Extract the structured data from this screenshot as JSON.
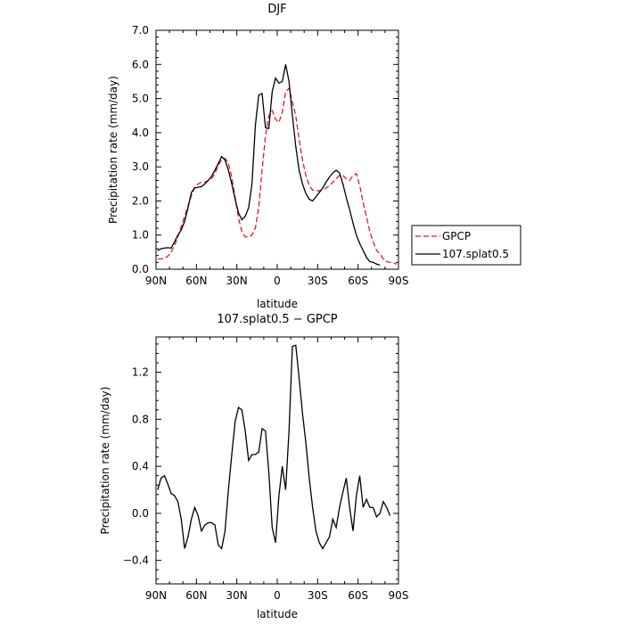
{
  "chart_data": [
    {
      "type": "line",
      "title": "DJF",
      "xlabel": "latitude",
      "ylabel": "Precipitation rate (mm/day)",
      "xlim": [
        90,
        -90
      ],
      "ylim": [
        0,
        7
      ],
      "x_ticks": [
        {
          "value": 90,
          "label": "90N"
        },
        {
          "value": 60,
          "label": "60N"
        },
        {
          "value": 30,
          "label": "30N"
        },
        {
          "value": 0,
          "label": "0"
        },
        {
          "value": -30,
          "label": "30S"
        },
        {
          "value": -60,
          "label": "60S"
        },
        {
          "value": -90,
          "label": "90S"
        }
      ],
      "y_ticks": [
        {
          "value": 0,
          "label": "0.0"
        },
        {
          "value": 1,
          "label": "1.0"
        },
        {
          "value": 2,
          "label": "2.0"
        },
        {
          "value": 3,
          "label": "3.0"
        },
        {
          "value": 4,
          "label": "4.0"
        },
        {
          "value": 5,
          "label": "5.0"
        },
        {
          "value": 6,
          "label": "6.0"
        },
        {
          "value": 7,
          "label": "7.0"
        }
      ],
      "legend_position": "right",
      "series": [
        {
          "name": "GPCP",
          "color": "#e8191c",
          "dash": "dashed",
          "points": [
            [
              88.75,
              0.3
            ],
            [
              86.25,
              0.3
            ],
            [
              83.75,
              0.32
            ],
            [
              81.25,
              0.38
            ],
            [
              78.75,
              0.5
            ],
            [
              76.25,
              0.7
            ],
            [
              73.75,
              0.95
            ],
            [
              71.25,
              1.25
            ],
            [
              68.75,
              1.55
            ],
            [
              66.25,
              1.85
            ],
            [
              63.75,
              2.15
            ],
            [
              61.25,
              2.4
            ],
            [
              58.75,
              2.5
            ],
            [
              56.25,
              2.55
            ],
            [
              53.75,
              2.55
            ],
            [
              51.25,
              2.6
            ],
            [
              48.75,
              2.65
            ],
            [
              46.25,
              2.8
            ],
            [
              43.75,
              3.05
            ],
            [
              41.25,
              3.2
            ],
            [
              38.75,
              3.25
            ],
            [
              36.25,
              3.1
            ],
            [
              33.75,
              2.7
            ],
            [
              31.25,
              2.1
            ],
            [
              28.75,
              1.5
            ],
            [
              26.25,
              1.1
            ],
            [
              23.75,
              0.95
            ],
            [
              21.25,
              0.95
            ],
            [
              18.75,
              1.0
            ],
            [
              16.25,
              1.2
            ],
            [
              13.75,
              1.8
            ],
            [
              11.25,
              2.9
            ],
            [
              8.75,
              3.9
            ],
            [
              6.25,
              4.5
            ],
            [
              3.75,
              4.65
            ],
            [
              1.25,
              4.4
            ],
            [
              -1.25,
              4.3
            ],
            [
              -3.75,
              4.6
            ],
            [
              -6.25,
              5.2
            ],
            [
              -8.75,
              5.3
            ],
            [
              -11.25,
              4.9
            ],
            [
              -13.75,
              4.5
            ],
            [
              -16.25,
              3.8
            ],
            [
              -18.75,
              3.2
            ],
            [
              -21.25,
              2.75
            ],
            [
              -23.75,
              2.45
            ],
            [
              -26.25,
              2.32
            ],
            [
              -28.75,
              2.3
            ],
            [
              -31.25,
              2.3
            ],
            [
              -33.75,
              2.32
            ],
            [
              -36.25,
              2.38
            ],
            [
              -38.75,
              2.45
            ],
            [
              -41.25,
              2.55
            ],
            [
              -43.75,
              2.65
            ],
            [
              -46.25,
              2.75
            ],
            [
              -48.75,
              2.75
            ],
            [
              -51.25,
              2.65
            ],
            [
              -53.75,
              2.6
            ],
            [
              -56.25,
              2.75
            ],
            [
              -58.75,
              2.8
            ],
            [
              -61.25,
              2.45
            ],
            [
              -63.75,
              1.95
            ],
            [
              -66.25,
              1.55
            ],
            [
              -68.75,
              1.1
            ],
            [
              -71.25,
              0.8
            ],
            [
              -73.75,
              0.55
            ],
            [
              -76.25,
              0.45
            ],
            [
              -78.75,
              0.3
            ],
            [
              -81.25,
              0.22
            ],
            [
              -83.75,
              0.2
            ],
            [
              -86.25,
              0.18
            ],
            [
              -88.75,
              0.15
            ]
          ]
        },
        {
          "name": "107.splat0.5",
          "color": "#000000",
          "dash": "solid",
          "points": [
            [
              88.75,
              0.55
            ],
            [
              86.25,
              0.6
            ],
            [
              83.75,
              0.62
            ],
            [
              81.25,
              0.63
            ],
            [
              78.75,
              0.62
            ],
            [
              76.25,
              0.8
            ],
            [
              73.75,
              1.0
            ],
            [
              71.25,
              1.15
            ],
            [
              68.75,
              1.4
            ],
            [
              66.25,
              1.8
            ],
            [
              63.75,
              2.25
            ],
            [
              61.25,
              2.38
            ],
            [
              58.75,
              2.4
            ],
            [
              56.25,
              2.42
            ],
            [
              53.75,
              2.5
            ],
            [
              51.25,
              2.6
            ],
            [
              48.75,
              2.72
            ],
            [
              46.25,
              2.9
            ],
            [
              43.75,
              3.1
            ],
            [
              41.25,
              3.3
            ],
            [
              38.75,
              3.2
            ],
            [
              36.25,
              2.9
            ],
            [
              33.75,
              2.5
            ],
            [
              31.25,
              2.05
            ],
            [
              28.75,
              1.65
            ],
            [
              26.25,
              1.45
            ],
            [
              23.75,
              1.55
            ],
            [
              21.25,
              1.8
            ],
            [
              18.75,
              2.5
            ],
            [
              16.25,
              4.2
            ],
            [
              13.75,
              5.1
            ],
            [
              11.25,
              5.15
            ],
            [
              8.75,
              4.15
            ],
            [
              6.25,
              4.12
            ],
            [
              3.75,
              5.2
            ],
            [
              1.25,
              5.6
            ],
            [
              -1.25,
              5.45
            ],
            [
              -3.75,
              5.5
            ],
            [
              -6.25,
              6.0
            ],
            [
              -8.75,
              5.5
            ],
            [
              -11.25,
              4.5
            ],
            [
              -13.75,
              3.6
            ],
            [
              -16.25,
              2.9
            ],
            [
              -18.75,
              2.5
            ],
            [
              -21.25,
              2.22
            ],
            [
              -23.75,
              2.05
            ],
            [
              -26.25,
              2.0
            ],
            [
              -28.75,
              2.12
            ],
            [
              -31.25,
              2.25
            ],
            [
              -33.75,
              2.38
            ],
            [
              -36.25,
              2.55
            ],
            [
              -38.75,
              2.7
            ],
            [
              -41.25,
              2.82
            ],
            [
              -43.75,
              2.9
            ],
            [
              -46.25,
              2.82
            ],
            [
              -48.75,
              2.5
            ],
            [
              -51.25,
              2.1
            ],
            [
              -53.75,
              1.75
            ],
            [
              -56.25,
              1.35
            ],
            [
              -58.75,
              1.0
            ],
            [
              -61.25,
              0.75
            ],
            [
              -63.75,
              0.55
            ],
            [
              -66.25,
              0.35
            ],
            [
              -68.75,
              0.22
            ],
            [
              -71.25,
              0.2
            ],
            [
              -73.75,
              0.15
            ],
            [
              -76.25,
              0.12
            ]
          ]
        }
      ]
    },
    {
      "type": "line",
      "title": "107.splat0.5 − GPCP",
      "xlabel": "latitude",
      "ylabel": "Precipitation rate (mm/day)",
      "xlim": [
        90,
        -90
      ],
      "ylim": [
        -0.6,
        1.5
      ],
      "x_ticks": [
        {
          "value": 90,
          "label": "90N"
        },
        {
          "value": 60,
          "label": "60N"
        },
        {
          "value": 30,
          "label": "30N"
        },
        {
          "value": 0,
          "label": "0"
        },
        {
          "value": -30,
          "label": "30S"
        },
        {
          "value": -60,
          "label": "60S"
        },
        {
          "value": -90,
          "label": "90S"
        }
      ],
      "y_ticks": [
        {
          "value": -0.4,
          "label": "−0.4"
        },
        {
          "value": 0.0,
          "label": "0.0"
        },
        {
          "value": 0.4,
          "label": "0.4"
        },
        {
          "value": 0.8,
          "label": "0.8"
        },
        {
          "value": 1.2,
          "label": "1.2"
        }
      ],
      "series": [
        {
          "name": "",
          "color": "#000000",
          "dash": "solid",
          "points": [
            [
              88.75,
              0.2
            ],
            [
              86.25,
              0.3
            ],
            [
              83.75,
              0.32
            ],
            [
              81.25,
              0.25
            ],
            [
              78.75,
              0.17
            ],
            [
              76.25,
              0.15
            ],
            [
              73.75,
              0.1
            ],
            [
              71.25,
              -0.05
            ],
            [
              68.75,
              -0.3
            ],
            [
              66.25,
              -0.2
            ],
            [
              63.75,
              -0.05
            ],
            [
              61.25,
              0.05
            ],
            [
              58.75,
              -0.02
            ],
            [
              56.25,
              -0.15
            ],
            [
              53.75,
              -0.1
            ],
            [
              51.25,
              -0.08
            ],
            [
              48.75,
              -0.08
            ],
            [
              46.25,
              -0.1
            ],
            [
              43.75,
              -0.27
            ],
            [
              41.25,
              -0.3
            ],
            [
              38.75,
              -0.15
            ],
            [
              36.25,
              0.2
            ],
            [
              33.75,
              0.5
            ],
            [
              31.25,
              0.78
            ],
            [
              28.75,
              0.9
            ],
            [
              26.25,
              0.88
            ],
            [
              23.75,
              0.7
            ],
            [
              21.25,
              0.45
            ],
            [
              18.75,
              0.5
            ],
            [
              16.25,
              0.5
            ],
            [
              13.75,
              0.52
            ],
            [
              11.25,
              0.72
            ],
            [
              8.75,
              0.7
            ],
            [
              6.25,
              0.35
            ],
            [
              3.75,
              -0.12
            ],
            [
              1.25,
              -0.25
            ],
            [
              -1.25,
              0.15
            ],
            [
              -3.75,
              0.4
            ],
            [
              -6.25,
              0.2
            ],
            [
              -8.75,
              0.7
            ],
            [
              -11.25,
              1.42
            ],
            [
              -13.75,
              1.43
            ],
            [
              -16.25,
              1.15
            ],
            [
              -18.75,
              0.85
            ],
            [
              -21.25,
              0.6
            ],
            [
              -23.75,
              0.3
            ],
            [
              -26.25,
              0.05
            ],
            [
              -28.75,
              -0.15
            ],
            [
              -31.25,
              -0.25
            ],
            [
              -33.75,
              -0.3
            ],
            [
              -36.25,
              -0.25
            ],
            [
              -38.75,
              -0.2
            ],
            [
              -41.25,
              -0.05
            ],
            [
              -43.75,
              -0.12
            ],
            [
              -46.25,
              0.05
            ],
            [
              -48.75,
              0.18
            ],
            [
              -51.25,
              0.3
            ],
            [
              -53.75,
              0.05
            ],
            [
              -56.25,
              -0.15
            ],
            [
              -58.75,
              0.15
            ],
            [
              -61.25,
              0.32
            ],
            [
              -63.75,
              0.05
            ],
            [
              -66.25,
              0.12
            ],
            [
              -68.75,
              0.05
            ],
            [
              -71.25,
              0.05
            ],
            [
              -73.75,
              -0.03
            ],
            [
              -76.25,
              0.0
            ],
            [
              -78.75,
              0.1
            ],
            [
              -81.25,
              0.05
            ],
            [
              -83.75,
              -0.02
            ]
          ]
        }
      ]
    }
  ]
}
